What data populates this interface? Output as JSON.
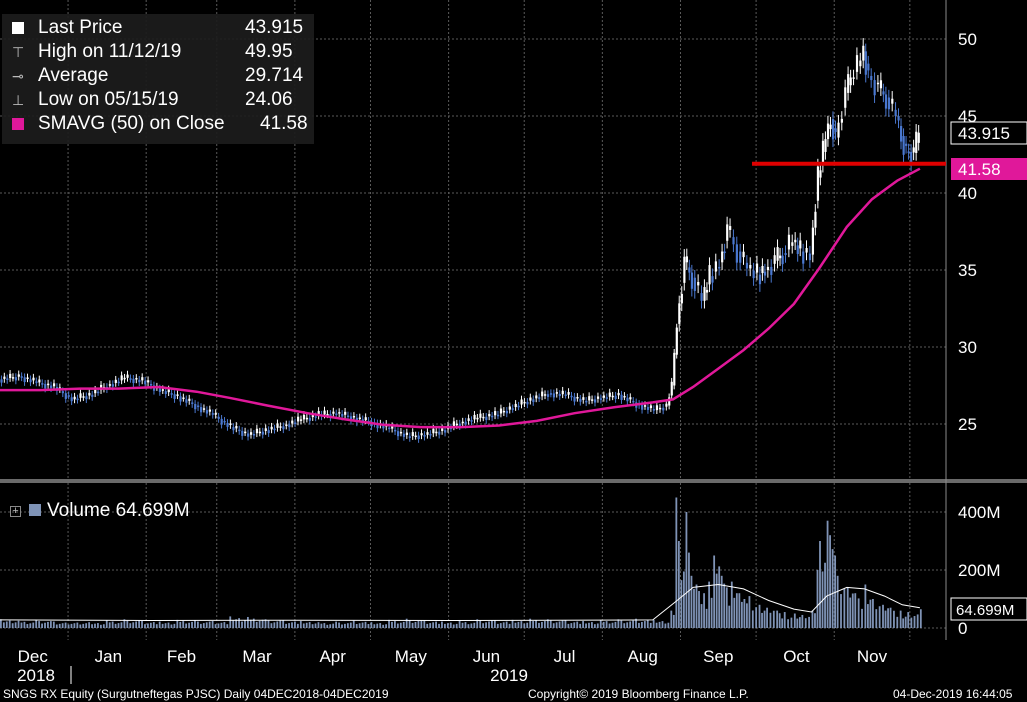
{
  "header": {
    "legend": [
      {
        "label": "Last Price",
        "value": "43.915",
        "icon": "white-square-icon"
      },
      {
        "label": "High on 11/12/19",
        "value": "49.95",
        "icon": "high-marker-icon"
      },
      {
        "label": "Average",
        "value": "29.714",
        "icon": "average-marker-icon"
      },
      {
        "label": "Low on 05/15/19",
        "value": "24.06",
        "icon": "low-marker-icon"
      },
      {
        "label": "SMAVG (50)  on Close",
        "value": "41.58",
        "icon": "magenta-square-icon"
      }
    ]
  },
  "volume_legend": {
    "label": "Volume",
    "value": "64.699M"
  },
  "footer": {
    "ticker": "SNGS RX Equity (Surgutneftegas PJSC)  Daily 04DEC2018-04DEC2019",
    "copyright": "Copyright© 2019 Bloomberg Finance L.P.",
    "timestamp": "04-Dec-2019 16:44:05"
  },
  "colors": {
    "background": "#000000",
    "grid": "#5a5a5a",
    "price_up": "#ffffff",
    "price_down": "#4a78d0",
    "sma": "#e0189a",
    "hline": "#e00000",
    "volume_bar": "#7f93b6",
    "volume_avg": "#ffffff"
  },
  "chart_data": [
    {
      "type": "line",
      "panel": "price",
      "x_tick_labels": [
        "Dec",
        "Jan",
        "Feb",
        "Mar",
        "Apr",
        "May",
        "Jun",
        "Jul",
        "Aug",
        "Sep",
        "Oct",
        "Nov"
      ],
      "year_labels": [
        "2018",
        "2019"
      ],
      "y_ticks": [
        25,
        30,
        35,
        40,
        45,
        50
      ],
      "ylim": [
        21,
        51.5
      ],
      "scale_right": true,
      "grid": true,
      "last_price_label": "43.915",
      "sma_label": "41.58",
      "horizontal_line": 41.9,
      "series": [
        {
          "name": "Last Price",
          "points": [
            [
              "2018-12-04",
              27.9
            ],
            [
              "2018-12-12",
              28.1
            ],
            [
              "2018-12-19",
              27.7
            ],
            [
              "2018-12-26",
              27.4
            ],
            [
              "2019-01-02",
              26.6
            ],
            [
              "2019-01-09",
              26.9
            ],
            [
              "2019-01-16",
              27.5
            ],
            [
              "2019-01-23",
              28.0
            ],
            [
              "2019-01-30",
              27.8
            ],
            [
              "2019-02-06",
              27.2
            ],
            [
              "2019-02-13",
              26.8
            ],
            [
              "2019-02-20",
              26.2
            ],
            [
              "2019-02-27",
              25.6
            ],
            [
              "2019-03-06",
              24.8
            ],
            [
              "2019-03-13",
              24.3
            ],
            [
              "2019-03-20",
              24.6
            ],
            [
              "2019-03-27",
              24.9
            ],
            [
              "2019-04-03",
              25.3
            ],
            [
              "2019-04-10",
              25.6
            ],
            [
              "2019-04-17",
              25.7
            ],
            [
              "2019-04-24",
              25.4
            ],
            [
              "2019-05-01",
              25.1
            ],
            [
              "2019-05-08",
              24.7
            ],
            [
              "2019-05-15",
              24.2
            ],
            [
              "2019-05-22",
              24.3
            ],
            [
              "2019-05-29",
              24.6
            ],
            [
              "2019-06-05",
              25.1
            ],
            [
              "2019-06-12",
              25.4
            ],
            [
              "2019-06-19",
              25.6
            ],
            [
              "2019-06-26",
              26.1
            ],
            [
              "2019-07-03",
              26.6
            ],
            [
              "2019-07-10",
              27.0
            ],
            [
              "2019-07-17",
              26.9
            ],
            [
              "2019-07-24",
              26.5
            ],
            [
              "2019-07-31",
              26.7
            ],
            [
              "2019-08-07",
              26.9
            ],
            [
              "2019-08-14",
              26.3
            ],
            [
              "2019-08-21",
              25.9
            ],
            [
              "2019-08-26",
              26.2
            ],
            [
              "2019-08-28",
              27.5
            ],
            [
              "2019-08-29",
              29.5
            ],
            [
              "2019-08-30",
              31.5
            ],
            [
              "2019-09-02",
              35.5
            ],
            [
              "2019-09-05",
              34.5
            ],
            [
              "2019-09-09",
              33.0
            ],
            [
              "2019-09-12",
              34.6
            ],
            [
              "2019-09-16",
              35.5
            ],
            [
              "2019-09-19",
              37.6
            ],
            [
              "2019-09-23",
              36.2
            ],
            [
              "2019-09-27",
              35.1
            ],
            [
              "2019-10-01",
              34.7
            ],
            [
              "2019-10-04",
              35.0
            ],
            [
              "2019-10-08",
              35.6
            ],
            [
              "2019-10-11",
              36.1
            ],
            [
              "2019-10-15",
              36.8
            ],
            [
              "2019-10-18",
              36.2
            ],
            [
              "2019-10-22",
              36.0
            ],
            [
              "2019-10-24",
              39.5
            ],
            [
              "2019-10-25",
              41.0
            ],
            [
              "2019-10-28",
              43.5
            ],
            [
              "2019-10-30",
              44.8
            ],
            [
              "2019-11-01",
              43.6
            ],
            [
              "2019-11-05",
              46.5
            ],
            [
              "2019-11-07",
              47.5
            ],
            [
              "2019-11-11",
              48.6
            ],
            [
              "2019-11-12",
              49.2
            ],
            [
              "2019-11-14",
              47.6
            ],
            [
              "2019-11-18",
              46.8
            ],
            [
              "2019-11-21",
              46.2
            ],
            [
              "2019-11-25",
              45.0
            ],
            [
              "2019-11-27",
              43.7
            ],
            [
              "2019-11-29",
              42.7
            ],
            [
              "2019-12-02",
              42.6
            ],
            [
              "2019-12-04",
              43.915
            ]
          ]
        },
        {
          "name": "SMAVG (50)  on Close",
          "points": [
            [
              "2018-12-04",
              27.2
            ],
            [
              "2018-12-20",
              27.2
            ],
            [
              "2019-01-05",
              27.3
            ],
            [
              "2019-01-20",
              27.3
            ],
            [
              "2019-02-05",
              27.4
            ],
            [
              "2019-02-20",
              27.1
            ],
            [
              "2019-03-05",
              26.7
            ],
            [
              "2019-03-20",
              26.2
            ],
            [
              "2019-04-05",
              25.7
            ],
            [
              "2019-04-20",
              25.3
            ],
            [
              "2019-05-05",
              24.95
            ],
            [
              "2019-05-20",
              24.8
            ],
            [
              "2019-06-05",
              24.8
            ],
            [
              "2019-06-20",
              24.9
            ],
            [
              "2019-07-05",
              25.2
            ],
            [
              "2019-07-20",
              25.7
            ],
            [
              "2019-08-05",
              26.1
            ],
            [
              "2019-08-20",
              26.4
            ],
            [
              "2019-08-28",
              26.6
            ],
            [
              "2019-09-05",
              27.4
            ],
            [
              "2019-09-15",
              28.6
            ],
            [
              "2019-09-25",
              29.8
            ],
            [
              "2019-10-05",
              31.2
            ],
            [
              "2019-10-15",
              32.8
            ],
            [
              "2019-10-25",
              35.1
            ],
            [
              "2019-11-05",
              37.8
            ],
            [
              "2019-11-15",
              39.6
            ],
            [
              "2019-11-25",
              40.8
            ],
            [
              "2019-12-04",
              41.58
            ]
          ]
        }
      ]
    },
    {
      "type": "bar",
      "panel": "volume",
      "y_ticks": [
        0,
        200,
        400
      ],
      "y_tick_labels": [
        "0",
        "200M",
        "400M"
      ],
      "ylim": [
        0,
        480
      ],
      "volume_label": "64.699M",
      "series": [
        {
          "name": "Volume",
          "points": [
            [
              "2018-12-04",
              30
            ],
            [
              "2018-12-11",
              25
            ],
            [
              "2018-12-18",
              28
            ],
            [
              "2018-12-25",
              22
            ],
            [
              "2019-01-08",
              20
            ],
            [
              "2019-01-15",
              26
            ],
            [
              "2019-01-22",
              30
            ],
            [
              "2019-01-29",
              24
            ],
            [
              "2019-02-05",
              22
            ],
            [
              "2019-02-12",
              28
            ],
            [
              "2019-02-19",
              26
            ],
            [
              "2019-02-26",
              24
            ],
            [
              "2019-03-05",
              40
            ],
            [
              "2019-03-12",
              38
            ],
            [
              "2019-03-19",
              30
            ],
            [
              "2019-03-26",
              26
            ],
            [
              "2019-04-02",
              24
            ],
            [
              "2019-04-09",
              20
            ],
            [
              "2019-04-16",
              22
            ],
            [
              "2019-04-23",
              25
            ],
            [
              "2019-04-30",
              20
            ],
            [
              "2019-05-07",
              28
            ],
            [
              "2019-05-14",
              32
            ],
            [
              "2019-05-21",
              26
            ],
            [
              "2019-05-28",
              22
            ],
            [
              "2019-06-04",
              24
            ],
            [
              "2019-06-11",
              30
            ],
            [
              "2019-06-18",
              26
            ],
            [
              "2019-06-25",
              28
            ],
            [
              "2019-07-02",
              32
            ],
            [
              "2019-07-09",
              30
            ],
            [
              "2019-07-16",
              26
            ],
            [
              "2019-07-23",
              24
            ],
            [
              "2019-07-30",
              28
            ],
            [
              "2019-08-06",
              30
            ],
            [
              "2019-08-13",
              32
            ],
            [
              "2019-08-20",
              28
            ],
            [
              "2019-08-27",
              60
            ],
            [
              "2019-08-29",
              450
            ],
            [
              "2019-08-30",
              300
            ],
            [
              "2019-09-02",
              400
            ],
            [
              "2019-09-04",
              180
            ],
            [
              "2019-09-06",
              150
            ],
            [
              "2019-09-09",
              120
            ],
            [
              "2019-09-11",
              160
            ],
            [
              "2019-09-13",
              250
            ],
            [
              "2019-09-16",
              180
            ],
            [
              "2019-09-18",
              140
            ],
            [
              "2019-09-20",
              160
            ],
            [
              "2019-09-23",
              120
            ],
            [
              "2019-09-25",
              100
            ],
            [
              "2019-09-27",
              110
            ],
            [
              "2019-10-01",
              80
            ],
            [
              "2019-10-04",
              70
            ],
            [
              "2019-10-08",
              60
            ],
            [
              "2019-10-11",
              55
            ],
            [
              "2019-10-15",
              50
            ],
            [
              "2019-10-18",
              45
            ],
            [
              "2019-10-22",
              60
            ],
            [
              "2019-10-24",
              200
            ],
            [
              "2019-10-25",
              300
            ],
            [
              "2019-10-28",
              370
            ],
            [
              "2019-10-29",
              320
            ],
            [
              "2019-10-31",
              250
            ],
            [
              "2019-11-01",
              180
            ],
            [
              "2019-11-05",
              140
            ],
            [
              "2019-11-08",
              120
            ],
            [
              "2019-11-12",
              150
            ],
            [
              "2019-11-15",
              100
            ],
            [
              "2019-11-19",
              80
            ],
            [
              "2019-11-22",
              70
            ],
            [
              "2019-11-26",
              60
            ],
            [
              "2019-11-29",
              55
            ],
            [
              "2019-12-04",
              64.699
            ]
          ]
        },
        {
          "name": "Volume average",
          "points": [
            [
              "2018-12-04",
              28
            ],
            [
              "2019-02-01",
              26
            ],
            [
              "2019-04-01",
              27
            ],
            [
              "2019-06-01",
              26
            ],
            [
              "2019-08-20",
              28
            ],
            [
              "2019-08-29",
              90
            ],
            [
              "2019-09-05",
              140
            ],
            [
              "2019-09-15",
              150
            ],
            [
              "2019-09-25",
              135
            ],
            [
              "2019-10-05",
              95
            ],
            [
              "2019-10-15",
              65
            ],
            [
              "2019-10-22",
              55
            ],
            [
              "2019-10-28",
              110
            ],
            [
              "2019-11-05",
              140
            ],
            [
              "2019-11-12",
              135
            ],
            [
              "2019-11-20",
              110
            ],
            [
              "2019-11-27",
              80
            ],
            [
              "2019-12-04",
              70
            ]
          ]
        }
      ]
    }
  ]
}
